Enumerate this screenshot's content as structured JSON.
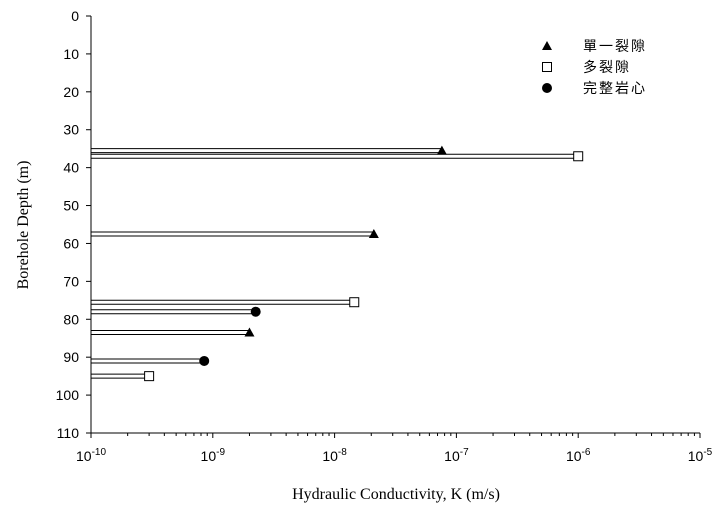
{
  "chart_data": {
    "type": "scatter",
    "xlabel": "Hydraulic Conductivity, K (m/s)",
    "ylabel": "Borehole Depth (m)",
    "x_scale": "log",
    "xlim": [
      1e-10,
      1e-05
    ],
    "x_ticks": [
      {
        "base": "10",
        "exp": "-10"
      },
      {
        "base": "10",
        "exp": "-9"
      },
      {
        "base": "10",
        "exp": "-8"
      },
      {
        "base": "10",
        "exp": "-7"
      },
      {
        "base": "10",
        "exp": "-6"
      },
      {
        "base": "10",
        "exp": "-5"
      }
    ],
    "ylim": [
      0,
      110
    ],
    "y_inverted": true,
    "y_ticks": [
      "0",
      "10",
      "20",
      "30",
      "40",
      "50",
      "60",
      "70",
      "80",
      "90",
      "100",
      "110"
    ],
    "grid": false,
    "legend_position": "top-right",
    "series": [
      {
        "name": "單一裂隙",
        "marker": "filled-triangle",
        "points": [
          {
            "x": 7.6e-08,
            "y": 35.5
          },
          {
            "x": 2.1e-08,
            "y": 57.5
          },
          {
            "x": 2e-09,
            "y": 83.5
          }
        ]
      },
      {
        "name": "多裂隙",
        "marker": "open-square",
        "points": [
          {
            "x": 1e-06,
            "y": 37.0
          },
          {
            "x": 1.45e-08,
            "y": 75.5
          },
          {
            "x": 3e-10,
            "y": 95.0
          }
        ]
      },
      {
        "name": "完整岩心",
        "marker": "filled-circle",
        "points": [
          {
            "x": 2.25e-09,
            "y": 78.0
          },
          {
            "x": 8.5e-10,
            "y": 91.0
          }
        ]
      }
    ]
  }
}
